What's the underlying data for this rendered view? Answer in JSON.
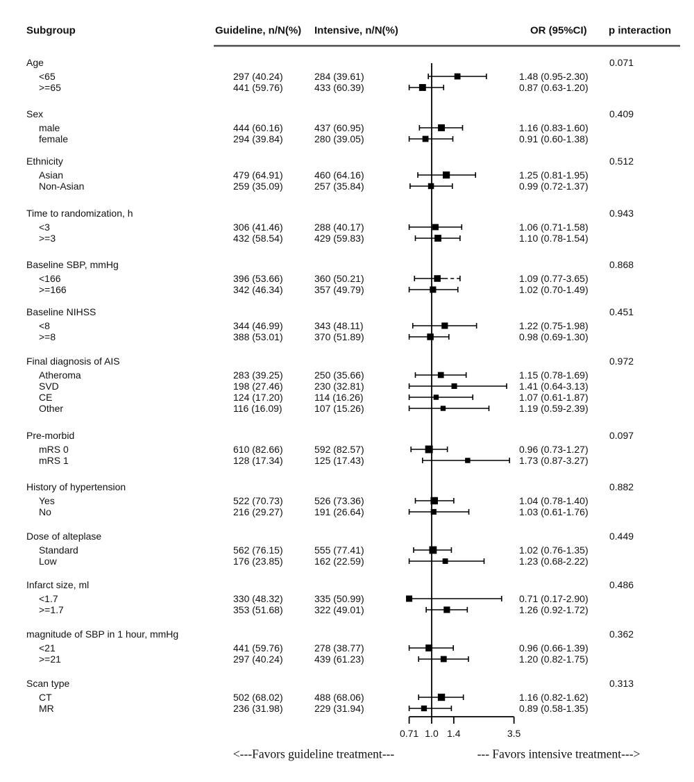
{
  "figure": {
    "type": "forest-plot subgroup analysis"
  },
  "header": {
    "subgroup": "Subgroup",
    "guideline": "Guideline, n/N(%)",
    "intensive": "Intensive, n/N(%)",
    "or": "OR (95%CI)",
    "p": "p interaction"
  },
  "footer": {
    "favors_left": "<---Favors guideline treatment---",
    "favors_right": "--- Favors intensive treatment--->"
  },
  "colors": {
    "ink": "#000000",
    "text": "#111111",
    "header_rule": "#4a4a4a"
  },
  "chart_data": {
    "type": "forest",
    "x_scale": "log",
    "xlim": [
      0.71,
      3.5
    ],
    "reference_value": 1.0,
    "axis_ticks": [
      {
        "label": "0.71",
        "value": 0.71
      },
      {
        "label": "1.0",
        "value": 1.0
      },
      {
        "label": "1.4",
        "value": 1.4
      },
      {
        "label": "3.5",
        "value": 3.5
      }
    ],
    "columns": [
      "Subgroup",
      "Guideline, n/N(%)",
      "Intensive, n/N(%)",
      "OR (95%CI)",
      "p interaction"
    ],
    "groups": [
      {
        "label": "Age",
        "p_interaction": "0.071",
        "rows": [
          {
            "label": "<65",
            "guideline": "297 (40.24)",
            "intensive": "284 (39.61)",
            "or": 1.48,
            "ci_low": 0.95,
            "ci_high": 2.3,
            "or_text": "1.48 (0.95-2.30)"
          },
          {
            "label": ">=65",
            "guideline": "441 (59.76)",
            "intensive": "433 (60.39)",
            "or": 0.87,
            "ci_low": 0.63,
            "ci_high": 1.2,
            "or_text": "0.87 (0.63-1.20)"
          }
        ]
      },
      {
        "label": "Sex",
        "p_interaction": "0.409",
        "rows": [
          {
            "label": "male",
            "guideline": "444 (60.16)",
            "intensive": "437 (60.95)",
            "or": 1.16,
            "ci_low": 0.83,
            "ci_high": 1.6,
            "or_text": "1.16 (0.83-1.60)"
          },
          {
            "label": "female",
            "guideline": "294 (39.84)",
            "intensive": "280 (39.05)",
            "or": 0.91,
            "ci_low": 0.6,
            "ci_high": 1.38,
            "or_text": "0.91 (0.60-1.38)"
          }
        ]
      },
      {
        "label": "Ethnicity",
        "p_interaction": "0.512",
        "rows": [
          {
            "label": "Asian",
            "guideline": "479 (64.91)",
            "intensive": "460 (64.16)",
            "or": 1.25,
            "ci_low": 0.81,
            "ci_high": 1.95,
            "or_text": "1.25 (0.81-1.95)"
          },
          {
            "label": "Non-Asian",
            "guideline": "259 (35.09)",
            "intensive": "257 (35.84)",
            "or": 0.99,
            "ci_low": 0.72,
            "ci_high": 1.37,
            "or_text": "0.99 (0.72-1.37)"
          }
        ]
      },
      {
        "label": "Time to randomization, h",
        "p_interaction": "0.943",
        "rows": [
          {
            "label": "<3",
            "guideline": "306 (41.46)",
            "intensive": "288 (40.17)",
            "or": 1.06,
            "ci_low": 0.71,
            "ci_high": 1.58,
            "or_text": "1.06 (0.71-1.58)"
          },
          {
            "label": ">=3",
            "guideline": "432 (58.54)",
            "intensive": "429 (59.83)",
            "or": 1.1,
            "ci_low": 0.78,
            "ci_high": 1.54,
            "or_text": "1.10 (0.78-1.54)"
          }
        ]
      },
      {
        "label": "Baseline SBP, mmHg",
        "p_interaction": "0.868",
        "rows": [
          {
            "label": "<166",
            "guideline": "396 (53.66)",
            "intensive": "360 (50.21)",
            "or": 1.09,
            "ci_low": 0.77,
            "ci_high": 3.65,
            "or_text": "1.09 (0.77-3.65)",
            "plot_truncated_right_at": 1.54,
            "plot_right_dashed": true
          },
          {
            "label": ">=166",
            "guideline": "342 (46.34)",
            "intensive": "357 (49.79)",
            "or": 1.02,
            "ci_low": 0.7,
            "ci_high": 1.49,
            "or_text": "1.02 (0.70-1.49)"
          }
        ]
      },
      {
        "label": "Baseline NIHSS",
        "p_interaction": "0.451",
        "rows": [
          {
            "label": "<8",
            "guideline": "344 (46.99)",
            "intensive": "343 (48.11)",
            "or": 1.22,
            "ci_low": 0.75,
            "ci_high": 1.98,
            "or_text": "1.22 (0.75-1.98)"
          },
          {
            "label": ">=8",
            "guideline": "388 (53.01)",
            "intensive": "370 (51.89)",
            "or": 0.98,
            "ci_low": 0.69,
            "ci_high": 1.3,
            "or_text": "0.98 (0.69-1.30)"
          }
        ]
      },
      {
        "label": "Final diagnosis of AIS",
        "p_interaction": "0.972",
        "rows": [
          {
            "label": "Atheroma",
            "guideline": "283 (39.25)",
            "intensive": "250 (35.66)",
            "or": 1.15,
            "ci_low": 0.78,
            "ci_high": 1.69,
            "or_text": "1.15 (0.78-1.69)"
          },
          {
            "label": "SVD",
            "guideline": "198 (27.46)",
            "intensive": "230 (32.81)",
            "or": 1.41,
            "ci_low": 0.64,
            "ci_high": 3.13,
            "or_text": "1.41 (0.64-3.13)"
          },
          {
            "label": "CE",
            "guideline": "124 (17.20)",
            "intensive": "114 (16.26)",
            "or": 1.07,
            "ci_low": 0.61,
            "ci_high": 1.87,
            "or_text": "1.07 (0.61-1.87)"
          },
          {
            "label": "Other",
            "guideline": "116 (16.09)",
            "intensive": "107 (15.26)",
            "or": 1.19,
            "ci_low": 0.59,
            "ci_high": 2.39,
            "or_text": "1.19 (0.59-2.39)"
          }
        ]
      },
      {
        "label": "Pre-morbid",
        "p_interaction": "0.097",
        "rows": [
          {
            "label": "mRS 0",
            "guideline": "610 (82.66)",
            "intensive": "592 (82.57)",
            "or": 0.96,
            "ci_low": 0.73,
            "ci_high": 1.27,
            "or_text": "0.96 (0.73-1.27)"
          },
          {
            "label": "mRS 1",
            "guideline": "128 (17.34)",
            "intensive": "125 (17.43)",
            "or": 1.73,
            "ci_low": 0.87,
            "ci_high": 3.27,
            "or_text": "1.73 (0.87-3.27)"
          }
        ]
      },
      {
        "label": "History of hypertension",
        "p_interaction": "0.882",
        "rows": [
          {
            "label": "Yes",
            "guideline": "522 (70.73)",
            "intensive": "526 (73.36)",
            "or": 1.04,
            "ci_low": 0.78,
            "ci_high": 1.4,
            "or_text": "1.04 (0.78-1.40)"
          },
          {
            "label": "No",
            "guideline": "216 (29.27)",
            "intensive": "191 (26.64)",
            "or": 1.03,
            "ci_low": 0.61,
            "ci_high": 1.76,
            "or_text": "1.03 (0.61-1.76)"
          }
        ]
      },
      {
        "label": "Dose of alteplase",
        "p_interaction": "0.449",
        "rows": [
          {
            "label": "Standard",
            "guideline": "562 (76.15)",
            "intensive": "555 (77.41)",
            "or": 1.02,
            "ci_low": 0.76,
            "ci_high": 1.35,
            "or_text": "1.02 (0.76-1.35)"
          },
          {
            "label": "Low",
            "guideline": "176 (23.85)",
            "intensive": "162 (22.59)",
            "or": 1.23,
            "ci_low": 0.68,
            "ci_high": 2.22,
            "or_text": "1.23 (0.68-2.22)"
          }
        ]
      },
      {
        "label": "Infarct size, ml",
        "p_interaction": "0.486",
        "rows": [
          {
            "label": "<1.7",
            "guideline": "330 (48.32)",
            "intensive": "335 (50.99)",
            "or": 0.71,
            "ci_low": 0.17,
            "ci_high": 2.9,
            "or_text": "0.71 (0.17-2.90)"
          },
          {
            "label": ">=1.7",
            "guideline": "353 (51.68)",
            "intensive": "322 (49.01)",
            "or": 1.26,
            "ci_low": 0.92,
            "ci_high": 1.72,
            "or_text": "1.26 (0.92-1.72)"
          }
        ]
      },
      {
        "label": "magnitude of SBP in 1 hour, mmHg",
        "p_interaction": "0.362",
        "rows": [
          {
            "label": "<21",
            "guideline": "441 (59.76)",
            "intensive": "278 (38.77)",
            "or": 0.96,
            "ci_low": 0.66,
            "ci_high": 1.39,
            "or_text": "0.96 (0.66-1.39)"
          },
          {
            "label": ">=21",
            "guideline": "297 (40.24)",
            "intensive": "439 (61.23)",
            "or": 1.2,
            "ci_low": 0.82,
            "ci_high": 1.75,
            "or_text": "1.20 (0.82-1.75)"
          }
        ]
      },
      {
        "label": "Scan type",
        "p_interaction": "0.313",
        "rows": [
          {
            "label": "CT",
            "guideline": "502 (68.02)",
            "intensive": "488 (68.06)",
            "or": 1.16,
            "ci_low": 0.82,
            "ci_high": 1.62,
            "or_text": "1.16 (0.82-1.62)"
          },
          {
            "label": "MR",
            "guideline": "236 (31.98)",
            "intensive": "229 (31.94)",
            "or": 0.89,
            "ci_low": 0.58,
            "ci_high": 1.35,
            "or_text": "0.89 (0.58-1.35)"
          }
        ]
      }
    ]
  }
}
